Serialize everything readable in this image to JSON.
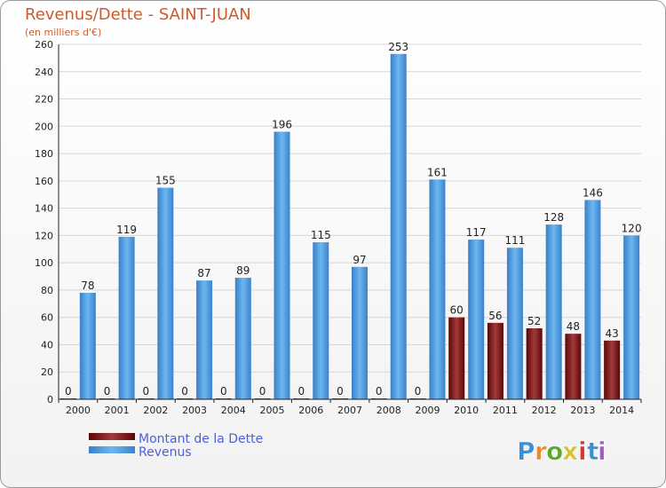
{
  "chart_data": {
    "type": "bar",
    "title": "Revenus/Dette - SAINT-JUAN",
    "subtitle": "(en milliers d'€)",
    "categories": [
      "2000",
      "2001",
      "2002",
      "2003",
      "2004",
      "2005",
      "2006",
      "2007",
      "2008",
      "2009",
      "2010",
      "2011",
      "2012",
      "2013",
      "2014"
    ],
    "series": [
      {
        "name": "Montant de la Dette",
        "color": "#6b0d0d",
        "values": [
          0,
          0,
          0,
          0,
          0,
          0,
          0,
          0,
          0,
          0,
          60,
          56,
          52,
          48,
          43
        ]
      },
      {
        "name": "Revenus",
        "color": "#3d8fd9",
        "values": [
          78,
          119,
          155,
          87,
          89,
          196,
          115,
          97,
          253,
          161,
          117,
          111,
          128,
          146,
          120
        ]
      }
    ],
    "ylim": [
      0,
      260
    ],
    "yticks": [
      0,
      20,
      40,
      60,
      80,
      100,
      120,
      140,
      160,
      180,
      200,
      220,
      240,
      260
    ],
    "grid": true,
    "legend": "bottom-left"
  },
  "logo": {
    "letters": [
      "P",
      "r",
      "o",
      "x",
      "i",
      "t",
      "i"
    ],
    "colors": [
      "#3a8fd6",
      "#e8892b",
      "#5aa82c",
      "#d8c12a",
      "#d9342b",
      "#3a8fd6",
      "#9b5cc4"
    ]
  }
}
